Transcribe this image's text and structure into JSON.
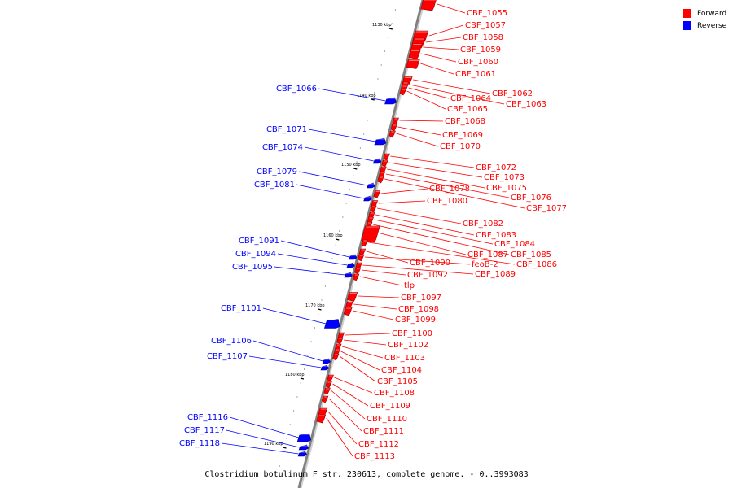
{
  "legend": {
    "forward_label": "Forward",
    "reverse_label": "Reverse",
    "forward_color": "#ff0000",
    "reverse_color": "#0000ff"
  },
  "caption": "Clostridium botulinum F str. 230613, complete genome. - 0..3993083",
  "strand_color": "#808080",
  "scale_labels": [
    "1130 kbp",
    "1140 kbp",
    "1150 kbp",
    "1160 kbp",
    "1170 kbp",
    "1180 kbp",
    "1190 kbp"
  ],
  "forward_genes": [
    "CBF_1055",
    "CBF_1057",
    "CBF_1058",
    "CBF_1059",
    "CBF_1060",
    "CBF_1061",
    "CBF_1062",
    "CBF_1063",
    "CBF_1064",
    "CBF_1065",
    "CBF_1068",
    "CBF_1069",
    "CBF_1070",
    "CBF_1072",
    "CBF_1073",
    "CBF_1075",
    "CBF_1076",
    "CBF_1077",
    "CBF_1078",
    "CBF_1080",
    "CBF_1082",
    "CBF_1083",
    "CBF_1084",
    "CBF_1085",
    "CBF_1087",
    "CBF_1086",
    "CBF_1090",
    "feoB-2",
    "CBF_1089",
    "CBF_1092",
    "tlp",
    "CBF_1097",
    "CBF_1098",
    "CBF_1099",
    "CBF_1100",
    "CBF_1102",
    "CBF_1103",
    "CBF_1104",
    "CBF_1105",
    "CBF_1108",
    "CBF_1109",
    "CBF_1110",
    "CBF_1111",
    "CBF_1112",
    "CBF_1113"
  ],
  "reverse_genes": [
    "CBF_1066",
    "CBF_1071",
    "CBF_1074",
    "CBF_1079",
    "CBF_1081",
    "CBF_1091",
    "CBF_1094",
    "CBF_1095",
    "CBF_1101",
    "CBF_1106",
    "CBF_1107",
    "CBF_1116",
    "CBF_1117",
    "CBF_1118"
  ]
}
